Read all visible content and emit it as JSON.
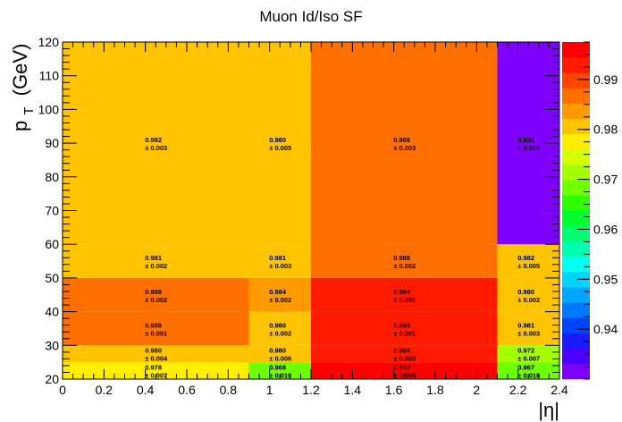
{
  "chart_data": {
    "type": "heatmap",
    "title": "Muon Id/Iso SF",
    "xlabel": "|η|",
    "ylabel_main": "p",
    "ylabel_sub": "T",
    "ylabel_unit": "(GeV)",
    "x_edges": [
      0,
      0.9,
      1.2,
      2.1,
      2.4
    ],
    "y_edges": [
      20,
      25,
      30,
      40,
      50,
      60,
      120
    ],
    "xlim": [
      0,
      2.4
    ],
    "ylim": [
      20,
      120
    ],
    "x_ticks": [
      "0",
      "0.2",
      "0.4",
      "0.6",
      "0.8",
      "1",
      "1.2",
      "1.4",
      "1.6",
      "1.8",
      "2",
      "2.2",
      "2.4"
    ],
    "y_ticks": [
      "20",
      "30",
      "40",
      "50",
      "60",
      "70",
      "80",
      "90",
      "100",
      "110",
      "120"
    ],
    "cells": [
      {
        "ix": 0,
        "iy": 0,
        "value": 0.978,
        "error": 0.007,
        "label_value": "0.978",
        "label_error": "± 0.007"
      },
      {
        "ix": 1,
        "iy": 0,
        "value": 0.968,
        "error": 0.01,
        "label_value": "0.968",
        "label_error": "± 0.010"
      },
      {
        "ix": 2,
        "iy": 0,
        "value": 0.997,
        "error": 0.005,
        "label_value": "0.997",
        "label_error": "± 0.005"
      },
      {
        "ix": 3,
        "iy": 0,
        "value": 0.967,
        "error": 0.018,
        "label_value": "0.967",
        "label_error": "± 0.018"
      },
      {
        "ix": 0,
        "iy": 1,
        "value": 0.98,
        "error": 0.004,
        "label_value": "0.980",
        "label_error": "± 0.004"
      },
      {
        "ix": 1,
        "iy": 1,
        "value": 0.98,
        "error": 0.006,
        "label_value": "0.980",
        "label_error": "± 0.006"
      },
      {
        "ix": 2,
        "iy": 1,
        "value": 0.994,
        "error": 0.003,
        "label_value": "0.994",
        "label_error": "± 0.003"
      },
      {
        "ix": 3,
        "iy": 1,
        "value": 0.972,
        "error": 0.007,
        "label_value": "0.972",
        "label_error": "± 0.007"
      },
      {
        "ix": 0,
        "iy": 2,
        "value": 0.988,
        "error": 0.001,
        "label_value": "0.988",
        "label_error": "± 0.001"
      },
      {
        "ix": 1,
        "iy": 2,
        "value": 0.98,
        "error": 0.002,
        "label_value": "0.980",
        "label_error": "± 0.002"
      },
      {
        "ix": 2,
        "iy": 2,
        "value": 0.994,
        "error": 0.001,
        "label_value": "0.994",
        "label_error": "± 0.001"
      },
      {
        "ix": 3,
        "iy": 2,
        "value": 0.981,
        "error": 0.003,
        "label_value": "0.981",
        "label_error": "± 0.003"
      },
      {
        "ix": 0,
        "iy": 3,
        "value": 0.988,
        "error": 0.002,
        "label_value": "0.988",
        "label_error": "± 0.002"
      },
      {
        "ix": 1,
        "iy": 3,
        "value": 0.984,
        "error": 0.002,
        "label_value": "0.984",
        "label_error": "± 0.002"
      },
      {
        "ix": 2,
        "iy": 3,
        "value": 0.994,
        "error": 0.001,
        "label_value": "0.994",
        "label_error": "± 0.001"
      },
      {
        "ix": 3,
        "iy": 3,
        "value": 0.98,
        "error": 0.002,
        "label_value": "0.980",
        "label_error": "± 0.002"
      },
      {
        "ix": 0,
        "iy": 4,
        "value": 0.981,
        "error": 0.002,
        "label_value": "0.981",
        "label_error": "± 0.002"
      },
      {
        "ix": 1,
        "iy": 4,
        "value": 0.981,
        "error": 0.003,
        "label_value": "0.981",
        "label_error": "± 0.003"
      },
      {
        "ix": 2,
        "iy": 4,
        "value": 0.988,
        "error": 0.002,
        "label_value": "0.988",
        "label_error": "± 0.002"
      },
      {
        "ix": 3,
        "iy": 4,
        "value": 0.982,
        "error": 0.005,
        "label_value": "0.982",
        "label_error": "± 0.005"
      },
      {
        "ix": 0,
        "iy": 5,
        "value": 0.982,
        "error": 0.003,
        "label_value": "0.982",
        "label_error": "± 0.003"
      },
      {
        "ix": 1,
        "iy": 5,
        "value": 0.98,
        "error": 0.005,
        "label_value": "0.980",
        "label_error": "± 0.005"
      },
      {
        "ix": 2,
        "iy": 5,
        "value": 0.988,
        "error": 0.003,
        "label_value": "0.988",
        "label_error": "± 0.003"
      },
      {
        "ix": 3,
        "iy": 5,
        "value": 0.931,
        "error": 0.01,
        "label_value": "0.931",
        "label_error": "± 0.010"
      }
    ],
    "colorbar": {
      "zmin": 0.93,
      "zmax": 0.9975,
      "ticks": [
        "0.94",
        "0.95",
        "0.96",
        "0.97",
        "0.98",
        "0.99"
      ],
      "tick_values": [
        0.94,
        0.95,
        0.96,
        0.97,
        0.98,
        0.99
      ],
      "palette": [
        "#7f00ff",
        "#4c00ff",
        "#1a1aff",
        "#0044ff",
        "#0077ff",
        "#00a6ff",
        "#00d4ff",
        "#00fff2",
        "#00ffb0",
        "#00ff6e",
        "#00ff2c",
        "#2cff00",
        "#6eff00",
        "#a6ff00",
        "#d4ff00",
        "#ffee00",
        "#ffc400",
        "#ff9a00",
        "#ff7000",
        "#ff4400",
        "#ff1a00",
        "#ff0000"
      ]
    },
    "grid": false,
    "legend": "colorbar-right"
  }
}
